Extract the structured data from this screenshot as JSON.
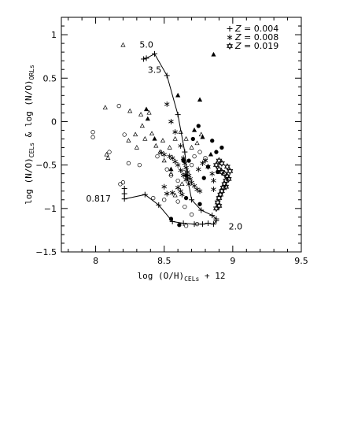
{
  "chart_data": {
    "type": "scatter",
    "xlabel": "log (O/H)CELs + 12",
    "xlabel_parts": {
      "pre": "log (O/H)",
      "sub": "CELs",
      "post": " + 12"
    },
    "ylabel": "log (N/O)CELs & log (N/O)ORLs",
    "ylabel_parts": {
      "a": "log (N/O)",
      "a_sub": "CELs",
      "mid": " & log (N/O)",
      "b_sub": "ORLs"
    },
    "xlim": [
      7.75,
      9.5
    ],
    "ylim": [
      -1.5,
      1.2
    ],
    "x_ticks": [
      {
        "value": 8,
        "label": "8"
      },
      {
        "value": 8.5,
        "label": "8.5"
      },
      {
        "value": 9,
        "label": "9"
      },
      {
        "value": 9.5,
        "label": "9.5"
      }
    ],
    "y_ticks": [
      {
        "value": 1,
        "label": "1"
      },
      {
        "value": 0.5,
        "label": "0.5"
      },
      {
        "value": 0,
        "label": "0"
      },
      {
        "value": -0.5,
        "label": "−0.5"
      },
      {
        "value": -1,
        "label": "−1"
      },
      {
        "value": -1.5,
        "label": "−1.5"
      }
    ],
    "x_minor_step": 0.1,
    "y_minor_step": 0.1,
    "legend": {
      "position": "top-right",
      "entries": [
        {
          "marker": "plus",
          "label": "Z = 0.004",
          "z_text": "Z",
          "value_text": " = 0.004"
        },
        {
          "marker": "asterisk",
          "label": "Z = 0.008",
          "z_text": "Z",
          "value_text": " = 0.008"
        },
        {
          "marker": "star",
          "label": "Z = 0.019",
          "z_text": "Z",
          "value_text": " = 0.019"
        }
      ]
    },
    "annotations": [
      {
        "text": "5.0",
        "x": 8.32,
        "y": 0.85
      },
      {
        "text": "3.5",
        "x": 8.38,
        "y": 0.56
      },
      {
        "text": "0.817",
        "x": 7.93,
        "y": -0.92
      },
      {
        "text": "2.0",
        "x": 8.97,
        "y": -1.24
      }
    ],
    "series": [
      {
        "marker": "plus",
        "line": true,
        "points": [
          [
            8.21,
            -0.77
          ],
          [
            8.21,
            -0.83
          ],
          [
            8.21,
            -0.89
          ],
          [
            8.36,
            -0.84
          ],
          [
            8.46,
            -0.96
          ],
          [
            8.56,
            -1.15
          ],
          [
            8.64,
            -1.17
          ],
          [
            8.72,
            -1.18
          ],
          [
            8.78,
            -1.18
          ],
          [
            8.82,
            -1.17
          ],
          [
            8.86,
            -1.18
          ],
          [
            8.88,
            -1.14
          ]
        ]
      },
      {
        "marker": "plus",
        "line": true,
        "points": [
          [
            8.35,
            0.72
          ],
          [
            8.37,
            0.73
          ],
          [
            8.43,
            0.78
          ],
          [
            8.52,
            0.53
          ],
          [
            8.6,
            0.08
          ],
          [
            8.65,
            -0.35
          ],
          [
            8.67,
            -0.65
          ],
          [
            8.7,
            -0.9
          ],
          [
            8.77,
            -1.02
          ],
          [
            8.85,
            -1.08
          ],
          [
            8.88,
            -1.12
          ]
        ]
      },
      {
        "marker": "asterisk",
        "line": false,
        "points": [
          [
            8.52,
            0.2
          ],
          [
            8.55,
            0.0
          ],
          [
            8.58,
            -0.12
          ],
          [
            8.62,
            -0.28
          ],
          [
            8.64,
            -0.42
          ],
          [
            8.65,
            -0.48
          ],
          [
            8.66,
            -0.53
          ],
          [
            8.67,
            -0.58
          ],
          [
            8.68,
            -0.62
          ],
          [
            8.69,
            -0.66
          ],
          [
            8.7,
            -0.7
          ],
          [
            8.72,
            -0.74
          ],
          [
            8.74,
            -0.78
          ],
          [
            8.76,
            -0.8
          ],
          [
            8.62,
            -0.56
          ],
          [
            8.64,
            -0.62
          ],
          [
            8.66,
            -0.67
          ],
          [
            8.68,
            -0.72
          ],
          [
            8.6,
            -0.5
          ],
          [
            8.58,
            -0.46
          ],
          [
            8.56,
            -0.42
          ],
          [
            8.54,
            -0.4
          ],
          [
            8.5,
            -0.38
          ],
          [
            8.48,
            -0.36
          ],
          [
            8.6,
            -0.76
          ],
          [
            8.62,
            -0.8
          ],
          [
            8.63,
            -0.84
          ],
          [
            8.56,
            -0.82
          ],
          [
            8.52,
            -0.83
          ],
          [
            8.5,
            -0.75
          ],
          [
            8.75,
            -0.55
          ],
          [
            8.78,
            -0.48
          ],
          [
            8.8,
            -0.45
          ],
          [
            8.82,
            -0.52
          ],
          [
            8.85,
            -0.6
          ],
          [
            8.86,
            -0.68
          ],
          [
            8.86,
            -0.78
          ]
        ]
      },
      {
        "marker": "star",
        "line": false,
        "points": [
          [
            8.88,
            -0.5
          ],
          [
            8.9,
            -0.55
          ],
          [
            8.92,
            -0.58
          ],
          [
            8.94,
            -0.6
          ],
          [
            8.96,
            -0.63
          ],
          [
            8.95,
            -0.68
          ],
          [
            8.94,
            -0.72
          ],
          [
            8.93,
            -0.76
          ],
          [
            8.92,
            -0.8
          ],
          [
            8.91,
            -0.84
          ],
          [
            8.9,
            -0.88
          ],
          [
            8.89,
            -0.93
          ],
          [
            8.9,
            -0.97
          ],
          [
            8.88,
            -1.0
          ],
          [
            8.9,
            -0.45
          ],
          [
            8.92,
            -0.48
          ],
          [
            8.96,
            -0.52
          ],
          [
            8.98,
            -0.57
          ],
          [
            8.97,
            -0.66
          ],
          [
            8.95,
            -0.75
          ]
        ]
      },
      {
        "marker": "open-triangle",
        "line": false,
        "points": [
          [
            8.2,
            0.88
          ],
          [
            8.07,
            0.16
          ],
          [
            8.25,
            0.12
          ],
          [
            8.33,
            0.08
          ],
          [
            8.39,
            0.1
          ],
          [
            8.08,
            -0.38
          ],
          [
            8.09,
            -0.42
          ],
          [
            8.24,
            -0.22
          ],
          [
            8.29,
            -0.15
          ],
          [
            8.36,
            -0.2
          ],
          [
            8.41,
            -0.14
          ],
          [
            8.44,
            -0.28
          ],
          [
            8.49,
            -0.22
          ],
          [
            8.47,
            -0.35
          ],
          [
            8.5,
            -0.45
          ],
          [
            8.54,
            -0.3
          ],
          [
            8.58,
            -0.2
          ],
          [
            8.62,
            -0.12
          ],
          [
            8.66,
            -0.2
          ],
          [
            8.7,
            -0.3
          ],
          [
            8.74,
            -0.25
          ],
          [
            8.55,
            -0.6
          ],
          [
            8.63,
            -0.72
          ],
          [
            8.58,
            -0.85
          ],
          [
            8.3,
            -0.3
          ],
          [
            8.34,
            -0.05
          ],
          [
            8.77,
            -0.15
          ]
        ]
      },
      {
        "marker": "filled-triangle",
        "line": false,
        "points": [
          [
            8.86,
            0.77
          ],
          [
            8.76,
            0.25
          ],
          [
            8.6,
            0.3
          ],
          [
            8.37,
            0.14
          ],
          [
            8.38,
            0.03
          ],
          [
            8.43,
            -0.2
          ],
          [
            8.55,
            -0.55
          ],
          [
            8.72,
            -0.1
          ],
          [
            8.78,
            -0.18
          ],
          [
            8.84,
            -0.38
          ]
        ]
      },
      {
        "marker": "open-circle",
        "line": false,
        "points": [
          [
            8.17,
            0.18
          ],
          [
            7.98,
            -0.12
          ],
          [
            7.98,
            -0.18
          ],
          [
            8.1,
            -0.35
          ],
          [
            8.21,
            -0.15
          ],
          [
            8.24,
            -0.48
          ],
          [
            8.32,
            -0.5
          ],
          [
            8.18,
            -0.72
          ],
          [
            8.2,
            -0.7
          ],
          [
            8.42,
            -0.88
          ],
          [
            8.5,
            -0.9
          ],
          [
            8.6,
            -0.92
          ],
          [
            8.65,
            -0.98
          ],
          [
            8.7,
            -1.07
          ],
          [
            8.74,
            -1.18
          ],
          [
            8.66,
            -1.2
          ],
          [
            8.52,
            -0.55
          ],
          [
            8.55,
            -0.62
          ],
          [
            8.6,
            -0.68
          ],
          [
            8.64,
            -0.58
          ],
          [
            8.7,
            -0.5
          ],
          [
            8.72,
            -0.4
          ],
          [
            8.76,
            -0.35
          ],
          [
            8.8,
            -0.42
          ],
          [
            8.45,
            -0.4
          ]
        ]
      },
      {
        "marker": "filled-circle",
        "line": false,
        "points": [
          [
            8.75,
            -0.05
          ],
          [
            8.71,
            -0.2
          ],
          [
            8.85,
            -0.22
          ],
          [
            8.82,
            -0.52
          ],
          [
            8.66,
            -0.62
          ],
          [
            8.66,
            -0.88
          ],
          [
            8.76,
            -0.95
          ],
          [
            8.55,
            -1.12
          ],
          [
            8.61,
            -1.19
          ],
          [
            8.92,
            -0.3
          ],
          [
            8.89,
            -0.58
          ],
          [
            8.88,
            -0.35
          ],
          [
            8.79,
            -0.65
          ],
          [
            8.68,
            -0.45
          ],
          [
            8.64,
            -0.45
          ]
        ]
      }
    ]
  }
}
